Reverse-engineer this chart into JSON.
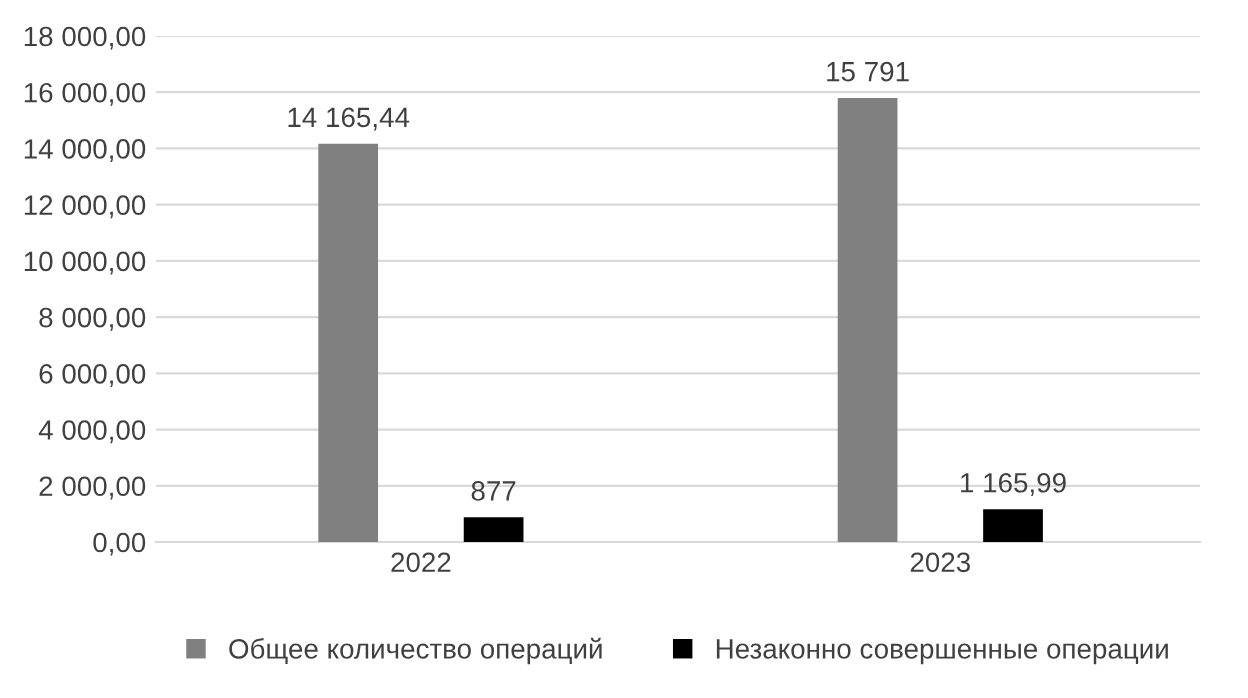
{
  "chart_data": {
    "type": "bar",
    "categories": [
      "2022",
      "2023"
    ],
    "series": [
      {
        "name": "Общее количество операций",
        "color": "#808080",
        "values": [
          14165.44,
          15791
        ],
        "value_labels": [
          "14 165,44",
          "15 791"
        ]
      },
      {
        "name": "Незаконно совершенные операции",
        "color": "#000000",
        "values": [
          877,
          1165.99
        ],
        "value_labels": [
          "877",
          "1 165,99"
        ]
      }
    ],
    "ylim": [
      0,
      18000
    ],
    "yticks": [
      {
        "value": 0,
        "label": "0,00"
      },
      {
        "value": 2000,
        "label": "2 000,00"
      },
      {
        "value": 4000,
        "label": "4 000,00"
      },
      {
        "value": 6000,
        "label": "6 000,00"
      },
      {
        "value": 8000,
        "label": "8 000,00"
      },
      {
        "value": 10000,
        "label": "10 000,00"
      },
      {
        "value": 12000,
        "label": "12 000,00"
      },
      {
        "value": 14000,
        "label": "14 000,00"
      },
      {
        "value": 16000,
        "label": "16 000,00"
      },
      {
        "value": 18000,
        "label": "18 000,00"
      }
    ],
    "grid": "y",
    "legend": "bottom"
  }
}
